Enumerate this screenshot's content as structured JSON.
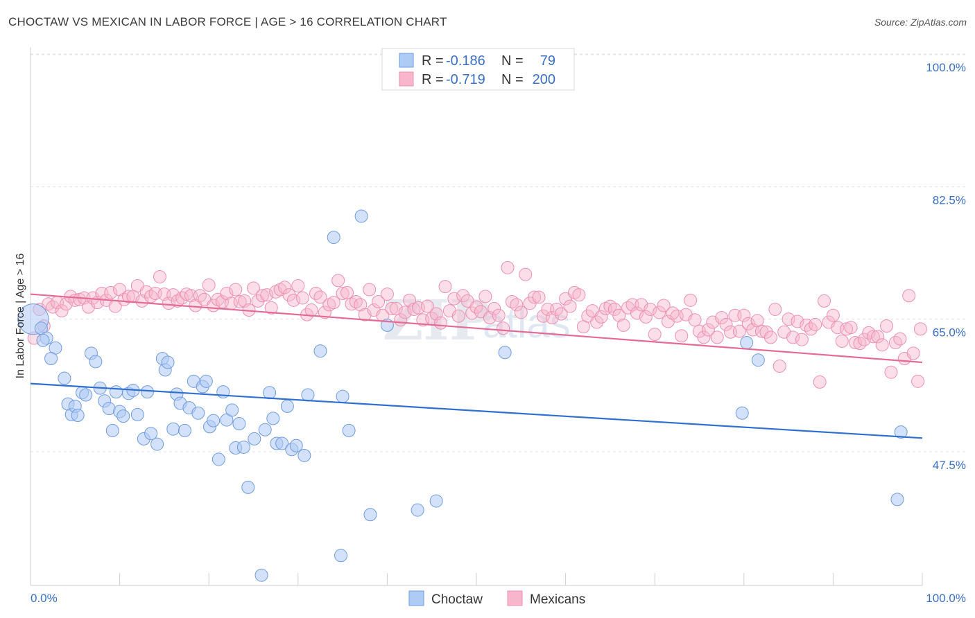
{
  "header": {
    "title": "CHOCTAW VS MEXICAN IN LABOR FORCE | AGE > 16 CORRELATION CHART",
    "source": "Source: ZipAtlas.com"
  },
  "watermark": {
    "part1": "ZIP",
    "part2": "atlas"
  },
  "legend_top": {
    "rows": [
      {
        "r_label": "R = ",
        "r_value": "-0.186",
        "n_label": "N = ",
        "n_value": "79",
        "color": "#aecbf5"
      },
      {
        "r_label": "R = ",
        "r_value": "-0.719",
        "n_label": "N = ",
        "n_value": "200",
        "color": "#f7b6cc"
      }
    ]
  },
  "legend_bottom": {
    "items": [
      {
        "label": "Choctaw",
        "color": "#aecbf5"
      },
      {
        "label": "Mexicans",
        "color": "#f7b6cc"
      }
    ]
  },
  "chart_data": {
    "type": "scatter",
    "title": "CHOCTAW VS MEXICAN IN LABOR FORCE | AGE > 16 CORRELATION CHART",
    "xlabel": "",
    "ylabel": "In Labor Force | Age > 16",
    "xlim": [
      0,
      100
    ],
    "ylim": [
      32,
      102
    ],
    "x_tick_labels": [
      "0.0%",
      "100.0%"
    ],
    "y_ticks": [
      47.5,
      65.0,
      82.5,
      100.0
    ],
    "y_tick_labels": [
      "47.5%",
      "65.0%",
      "82.5%",
      "100.0%"
    ],
    "grid": "horizontal dashed",
    "legend_position": "top-center",
    "colors": {
      "choctaw_fill": "#aecbf5",
      "choctaw_stroke": "#6f9be0",
      "choctaw_line": "#2f6fd0",
      "mexican_fill": "#f7b6cc",
      "mexican_stroke": "#ec8fb0",
      "mexican_line": "#e46b96"
    },
    "series": [
      {
        "name": "Choctaw",
        "r": -0.186,
        "n": 79,
        "trend": {
          "x": [
            0,
            100
          ],
          "y": [
            56.5,
            49.3
          ]
        },
        "points": [
          [
            0.3,
            65.0
          ],
          [
            1.2,
            63.8
          ],
          [
            1.8,
            62.5
          ],
          [
            2.8,
            61.2
          ],
          [
            1.4,
            62.2
          ],
          [
            2.3,
            59.8
          ],
          [
            3.8,
            57.2
          ],
          [
            4.2,
            53.8
          ],
          [
            4.6,
            52.4
          ],
          [
            5.0,
            53.5
          ],
          [
            5.3,
            52.3
          ],
          [
            5.8,
            55.3
          ],
          [
            6.2,
            55.0
          ],
          [
            6.8,
            60.5
          ],
          [
            7.3,
            59.4
          ],
          [
            7.8,
            55.9
          ],
          [
            8.3,
            54.2
          ],
          [
            8.8,
            53.2
          ],
          [
            9.2,
            50.3
          ],
          [
            9.6,
            55.4
          ],
          [
            10.0,
            52.8
          ],
          [
            10.4,
            52.2
          ],
          [
            11.0,
            55.2
          ],
          [
            11.5,
            55.6
          ],
          [
            12.0,
            52.4
          ],
          [
            12.7,
            49.2
          ],
          [
            13.1,
            55.4
          ],
          [
            13.5,
            49.9
          ],
          [
            14.2,
            48.5
          ],
          [
            14.8,
            59.8
          ],
          [
            15.1,
            58.3
          ],
          [
            15.4,
            59.3
          ],
          [
            16.0,
            50.5
          ],
          [
            16.4,
            55.1
          ],
          [
            16.8,
            53.9
          ],
          [
            17.3,
            50.3
          ],
          [
            17.8,
            53.3
          ],
          [
            18.3,
            56.8
          ],
          [
            18.8,
            52.6
          ],
          [
            19.3,
            56.1
          ],
          [
            19.7,
            56.8
          ],
          [
            20.1,
            50.8
          ],
          [
            20.5,
            51.6
          ],
          [
            21.1,
            46.5
          ],
          [
            21.6,
            55.4
          ],
          [
            22.0,
            51.7
          ],
          [
            22.6,
            53.0
          ],
          [
            23.0,
            48.0
          ],
          [
            23.4,
            51.2
          ],
          [
            23.9,
            48.1
          ],
          [
            24.4,
            42.8
          ],
          [
            25.1,
            49.2
          ],
          [
            25.9,
            31.2
          ],
          [
            26.3,
            50.4
          ],
          [
            26.8,
            55.3
          ],
          [
            27.2,
            51.9
          ],
          [
            27.6,
            48.6
          ],
          [
            28.2,
            48.6
          ],
          [
            28.8,
            53.5
          ],
          [
            29.3,
            47.8
          ],
          [
            29.8,
            48.3
          ],
          [
            30.7,
            47.0
          ],
          [
            31.1,
            55.0
          ],
          [
            32.5,
            60.8
          ],
          [
            34.0,
            75.8
          ],
          [
            34.8,
            33.8
          ],
          [
            35.0,
            54.8
          ],
          [
            35.7,
            50.3
          ],
          [
            37.1,
            78.6
          ],
          [
            38.1,
            39.2
          ],
          [
            40.0,
            64.2
          ],
          [
            43.4,
            39.8
          ],
          [
            45.5,
            41.0
          ],
          [
            53.2,
            60.6
          ],
          [
            81.6,
            59.6
          ],
          [
            79.8,
            52.6
          ],
          [
            80.3,
            61.9
          ],
          [
            97.2,
            41.2
          ],
          [
            97.6,
            50.1
          ]
        ]
      },
      {
        "name": "Mexicans",
        "r": -0.719,
        "n": 200,
        "trend": {
          "x": [
            0,
            100
          ],
          "y": [
            68.3,
            59.3
          ]
        },
        "points": [
          [
            0.4,
            62.5
          ],
          [
            1.0,
            66.3
          ],
          [
            1.5,
            64.1
          ],
          [
            2.0,
            67.0
          ],
          [
            2.5,
            66.6
          ],
          [
            3.0,
            67.2
          ],
          [
            3.5,
            66.1
          ],
          [
            4.0,
            67.0
          ],
          [
            4.5,
            68.0
          ],
          [
            5.0,
            67.5
          ],
          [
            5.5,
            67.6
          ],
          [
            6.0,
            67.8
          ],
          [
            6.5,
            66.6
          ],
          [
            7.0,
            67.8
          ],
          [
            7.5,
            67.2
          ],
          [
            8.0,
            68.4
          ],
          [
            8.5,
            67.5
          ],
          [
            9.0,
            68.5
          ],
          [
            9.5,
            66.7
          ],
          [
            10.0,
            68.9
          ],
          [
            10.5,
            67.6
          ],
          [
            11.0,
            68.0
          ],
          [
            11.5,
            68.0
          ],
          [
            12.0,
            69.4
          ],
          [
            12.5,
            67.4
          ],
          [
            13.0,
            68.6
          ],
          [
            13.5,
            68.0
          ],
          [
            14.0,
            68.4
          ],
          [
            14.5,
            70.6
          ],
          [
            15.0,
            68.3
          ],
          [
            15.5,
            67.1
          ],
          [
            16.0,
            68.2
          ],
          [
            16.5,
            67.4
          ],
          [
            17.0,
            67.8
          ],
          [
            17.5,
            68.3
          ],
          [
            18.0,
            68.1
          ],
          [
            18.5,
            66.8
          ],
          [
            19.0,
            68.1
          ],
          [
            19.5,
            67.6
          ],
          [
            20.0,
            69.5
          ],
          [
            20.5,
            66.8
          ],
          [
            21.0,
            67.6
          ],
          [
            21.5,
            67.3
          ],
          [
            22.0,
            68.4
          ],
          [
            22.5,
            67.1
          ],
          [
            23.0,
            68.9
          ],
          [
            23.5,
            67.3
          ],
          [
            24.0,
            67.4
          ],
          [
            24.5,
            66.2
          ],
          [
            25.0,
            69.1
          ],
          [
            25.5,
            67.4
          ],
          [
            26.0,
            68.1
          ],
          [
            26.5,
            68.2
          ],
          [
            27.0,
            66.5
          ],
          [
            27.5,
            68.6
          ],
          [
            28.0,
            68.9
          ],
          [
            28.5,
            69.2
          ],
          [
            29.0,
            68.2
          ],
          [
            29.5,
            67.5
          ],
          [
            30.0,
            69.4
          ],
          [
            30.5,
            67.8
          ],
          [
            31.0,
            65.6
          ],
          [
            31.5,
            66.2
          ],
          [
            32.0,
            68.4
          ],
          [
            32.5,
            67.9
          ],
          [
            33.0,
            65.9
          ],
          [
            33.5,
            66.9
          ],
          [
            34.0,
            67.2
          ],
          [
            34.5,
            70.1
          ],
          [
            35.0,
            68.4
          ],
          [
            35.5,
            68.5
          ],
          [
            36.0,
            67.0
          ],
          [
            36.5,
            67.3
          ],
          [
            37.0,
            66.9
          ],
          [
            37.5,
            65.6
          ],
          [
            38.0,
            68.9
          ],
          [
            38.5,
            66.2
          ],
          [
            39.0,
            67.3
          ],
          [
            39.5,
            65.5
          ],
          [
            40.0,
            68.3
          ],
          [
            40.5,
            66.4
          ],
          [
            41.0,
            66.4
          ],
          [
            41.5,
            64.9
          ],
          [
            42.0,
            65.9
          ],
          [
            42.5,
            67.5
          ],
          [
            43.0,
            66.3
          ],
          [
            43.5,
            66.5
          ],
          [
            44.0,
            64.9
          ],
          [
            44.5,
            66.7
          ],
          [
            45.0,
            65.1
          ],
          [
            45.5,
            65.7
          ],
          [
            46.0,
            64.5
          ],
          [
            46.5,
            69.3
          ],
          [
            47.0,
            66.1
          ],
          [
            47.5,
            67.7
          ],
          [
            48.0,
            65.4
          ],
          [
            48.5,
            68.1
          ],
          [
            49.0,
            67.4
          ],
          [
            49.5,
            65.8
          ],
          [
            50.0,
            66.6
          ],
          [
            50.5,
            66.0
          ],
          [
            51.0,
            68.0
          ],
          [
            51.5,
            65.2
          ],
          [
            52.0,
            66.4
          ],
          [
            52.5,
            65.5
          ],
          [
            53.0,
            63.8
          ],
          [
            53.5,
            71.8
          ],
          [
            54.0,
            67.3
          ],
          [
            54.5,
            66.9
          ],
          [
            55.0,
            65.9
          ],
          [
            55.5,
            70.9
          ],
          [
            56.0,
            67.1
          ],
          [
            56.5,
            67.9
          ],
          [
            57.0,
            67.9
          ],
          [
            57.5,
            65.4
          ],
          [
            58.0,
            66.3
          ],
          [
            58.5,
            65.2
          ],
          [
            59.0,
            66.3
          ],
          [
            59.5,
            65.7
          ],
          [
            60.0,
            67.7
          ],
          [
            60.5,
            66.7
          ],
          [
            61.0,
            68.5
          ],
          [
            61.5,
            68.2
          ],
          [
            62.0,
            64.0
          ],
          [
            62.5,
            65.4
          ],
          [
            63.0,
            66.1
          ],
          [
            63.5,
            64.6
          ],
          [
            64.0,
            65.3
          ],
          [
            64.5,
            66.4
          ],
          [
            65.0,
            66.7
          ],
          [
            65.5,
            66.3
          ],
          [
            66.0,
            65.5
          ],
          [
            66.5,
            64.2
          ],
          [
            67.0,
            66.5
          ],
          [
            67.5,
            66.9
          ],
          [
            68.0,
            65.8
          ],
          [
            68.5,
            66.9
          ],
          [
            69.0,
            65.3
          ],
          [
            69.5,
            66.3
          ],
          [
            70.0,
            63.0
          ],
          [
            70.5,
            65.9
          ],
          [
            71.0,
            66.8
          ],
          [
            71.5,
            64.7
          ],
          [
            72.0,
            65.8
          ],
          [
            72.5,
            65.4
          ],
          [
            73.0,
            62.8
          ],
          [
            73.5,
            65.6
          ],
          [
            74.0,
            67.5
          ],
          [
            74.5,
            64.9
          ],
          [
            75.0,
            63.4
          ],
          [
            75.5,
            62.6
          ],
          [
            76.0,
            63.6
          ],
          [
            76.5,
            64.6
          ],
          [
            77.0,
            62.6
          ],
          [
            77.5,
            65.2
          ],
          [
            78.0,
            64.3
          ],
          [
            78.5,
            63.3
          ],
          [
            79.0,
            65.5
          ],
          [
            79.5,
            63.4
          ],
          [
            80.0,
            65.5
          ],
          [
            80.5,
            64.4
          ],
          [
            81.0,
            63.6
          ],
          [
            81.5,
            64.8
          ],
          [
            82.0,
            63.4
          ],
          [
            82.5,
            63.3
          ],
          [
            83.0,
            62.6
          ],
          [
            83.5,
            66.3
          ],
          [
            84.0,
            58.8
          ],
          [
            84.5,
            63.3
          ],
          [
            85.0,
            65.0
          ],
          [
            85.5,
            62.6
          ],
          [
            86.0,
            64.7
          ],
          [
            86.5,
            62.3
          ],
          [
            87.0,
            64.2
          ],
          [
            87.5,
            63.7
          ],
          [
            88.0,
            64.3
          ],
          [
            88.5,
            56.7
          ],
          [
            89.0,
            67.4
          ],
          [
            89.5,
            64.6
          ],
          [
            90.0,
            65.5
          ],
          [
            90.5,
            63.9
          ],
          [
            91.0,
            62.1
          ],
          [
            91.5,
            63.7
          ],
          [
            92.0,
            63.9
          ],
          [
            92.5,
            61.9
          ],
          [
            93.0,
            61.8
          ],
          [
            93.5,
            62.3
          ],
          [
            94.0,
            63.2
          ],
          [
            94.5,
            62.7
          ],
          [
            95.0,
            62.7
          ],
          [
            95.5,
            61.6
          ],
          [
            96.0,
            64.1
          ],
          [
            96.5,
            58.0
          ],
          [
            97.0,
            61.9
          ],
          [
            97.5,
            62.4
          ],
          [
            98.0,
            59.8
          ],
          [
            98.5,
            68.1
          ],
          [
            99.0,
            60.5
          ],
          [
            99.5,
            56.8
          ],
          [
            99.8,
            63.7
          ]
        ]
      }
    ]
  }
}
